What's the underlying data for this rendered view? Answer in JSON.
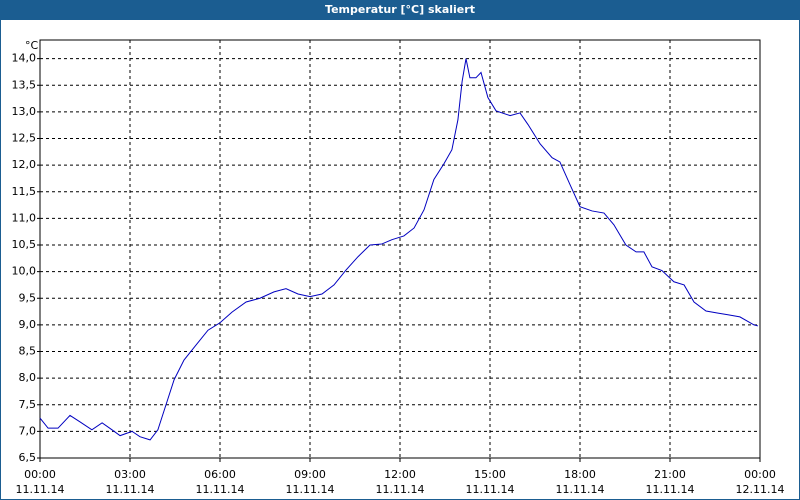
{
  "chart_data": {
    "type": "line",
    "title": "Temperatur [°C] skaliert",
    "y_label": "°C",
    "x": [
      0,
      0.27,
      0.6,
      1.0,
      1.33,
      1.73,
      2.07,
      2.4,
      2.67,
      3.07,
      3.33,
      3.67,
      3.93,
      4.2,
      4.47,
      4.8,
      5.2,
      5.6,
      6.0,
      6.4,
      6.87,
      7.33,
      7.8,
      8.2,
      8.6,
      9.0,
      9.4,
      9.8,
      10.2,
      10.6,
      11.0,
      11.4,
      11.73,
      12.13,
      12.47,
      12.8,
      13.13,
      13.47,
      13.73,
      13.93,
      14.07,
      14.2,
      14.33,
      14.53,
      14.7,
      14.93,
      15.2,
      15.67,
      16.0,
      16.27,
      16.67,
      17.07,
      17.33,
      17.67,
      18.0,
      18.4,
      18.8,
      19.13,
      19.53,
      19.87,
      20.13,
      20.4,
      20.73,
      21.13,
      21.47,
      21.8,
      22.2,
      22.6,
      22.93,
      23.33,
      23.8,
      23.93
    ],
    "values": [
      7.25,
      7.06,
      7.06,
      7.3,
      7.18,
      7.03,
      7.16,
      7.03,
      6.92,
      7.0,
      6.9,
      6.84,
      7.03,
      7.5,
      7.97,
      8.34,
      8.62,
      8.9,
      9.04,
      9.24,
      9.43,
      9.5,
      9.62,
      9.68,
      9.58,
      9.53,
      9.58,
      9.75,
      10.03,
      10.28,
      10.5,
      10.52,
      10.6,
      10.67,
      10.82,
      11.16,
      11.73,
      12.03,
      12.29,
      12.85,
      13.57,
      14.0,
      13.64,
      13.64,
      13.74,
      13.27,
      13.02,
      12.93,
      12.98,
      12.76,
      12.4,
      12.14,
      12.06,
      11.63,
      11.22,
      11.14,
      11.1,
      10.88,
      10.5,
      10.37,
      10.37,
      10.09,
      10.02,
      9.81,
      9.75,
      9.43,
      9.26,
      9.22,
      9.19,
      9.15,
      9.0,
      8.98
    ],
    "color": "#0000c0",
    "xlim": [
      0,
      24
    ],
    "xticks": [
      {
        "value": 0,
        "label": "00:00"
      },
      {
        "value": 3,
        "label": "03:00"
      },
      {
        "value": 6,
        "label": "06:00"
      },
      {
        "value": 9,
        "label": "09:00"
      },
      {
        "value": 12,
        "label": "12:00"
      },
      {
        "value": 15,
        "label": "15:00"
      },
      {
        "value": 18,
        "label": "18:00"
      },
      {
        "value": 21,
        "label": "21:00"
      },
      {
        "value": 24,
        "label": "00:00"
      }
    ],
    "xtick_dates": [
      "11.11.14",
      "11.11.14",
      "11.11.14",
      "11.11.14",
      "11.11.14",
      "11.11.14",
      "11.11.14",
      "11.11.14",
      "12.11.14"
    ],
    "ylim": [
      6.5,
      14.35
    ],
    "yticks": [
      {
        "value": 6.5,
        "label": "6,5"
      },
      {
        "value": 7,
        "label": "7,0"
      },
      {
        "value": 7.5,
        "label": "7,5"
      },
      {
        "value": 8,
        "label": "8,0"
      },
      {
        "value": 8.5,
        "label": "8,5"
      },
      {
        "value": 9,
        "label": "9,0"
      },
      {
        "value": 9.5,
        "label": "9,5"
      },
      {
        "value": 10,
        "label": "10,0"
      },
      {
        "value": 10.5,
        "label": "10,5"
      },
      {
        "value": 11,
        "label": "11,0"
      },
      {
        "value": 11.5,
        "label": "11,5"
      },
      {
        "value": 12,
        "label": "12,0"
      },
      {
        "value": 12.5,
        "label": "12,5"
      },
      {
        "value": 13,
        "label": "13,0"
      },
      {
        "value": 13.5,
        "label": "13,5"
      },
      {
        "value": 14,
        "label": "14,0"
      }
    ],
    "grid": true
  }
}
